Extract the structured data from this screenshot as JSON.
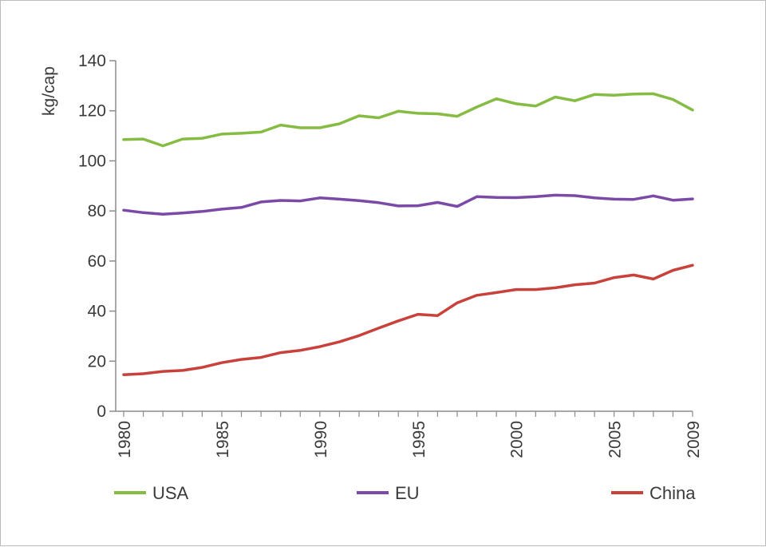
{
  "chart_data": {
    "type": "line",
    "title": "",
    "xlabel": "",
    "ylabel": "kg/cap",
    "xlim": [
      1980,
      2009
    ],
    "ylim": [
      0,
      140
    ],
    "x_ticks": [
      "1980",
      "1985",
      "1990",
      "1995",
      "2000",
      "2005",
      "2009"
    ],
    "y_ticks": [
      "0",
      "20",
      "40",
      "60",
      "80",
      "100",
      "120",
      "140"
    ],
    "x": [
      1980,
      1981,
      1982,
      1983,
      1984,
      1985,
      1986,
      1987,
      1988,
      1989,
      1990,
      1991,
      1992,
      1993,
      1994,
      1995,
      1996,
      1997,
      1998,
      1999,
      2000,
      2001,
      2002,
      2003,
      2004,
      2005,
      2006,
      2007,
      2008,
      2009
    ],
    "series": [
      {
        "name": "USA",
        "color": "#86bc43",
        "values": [
          108.5,
          108.7,
          106,
          108.7,
          109,
          110.7,
          111,
          111.5,
          114.3,
          113.2,
          113.2,
          114.8,
          118,
          117.2,
          119.8,
          119,
          118.8,
          117.8,
          121.5,
          124.8,
          122.8,
          121.9,
          125.5,
          124,
          126.5,
          126.2,
          126.7,
          126.8,
          124.5,
          120.3
        ]
      },
      {
        "name": "EU",
        "color": "#7a4aa6",
        "values": [
          80.3,
          79.3,
          78.7,
          79.2,
          79.8,
          80.7,
          81.4,
          83.6,
          84.2,
          84,
          85.2,
          84.7,
          84.1,
          83.3,
          82,
          82.1,
          83.4,
          81.8,
          85.7,
          85.4,
          85.3,
          85.7,
          86.3,
          86.1,
          85.2,
          84.7,
          84.6,
          86,
          84.3,
          84.8
        ]
      },
      {
        "name": "China",
        "color": "#c8413b",
        "values": [
          14.6,
          15,
          15.9,
          16.3,
          17.5,
          19.4,
          20.7,
          21.5,
          23.4,
          24.3,
          25.8,
          27.7,
          30.2,
          33.2,
          36.1,
          38.7,
          38.2,
          43.3,
          46.3,
          47.4,
          48.6,
          48.6,
          49.3,
          50.5,
          51.2,
          53.4,
          54.4,
          52.8,
          56.3,
          58.3
        ]
      }
    ],
    "legend_position": "bottom"
  }
}
